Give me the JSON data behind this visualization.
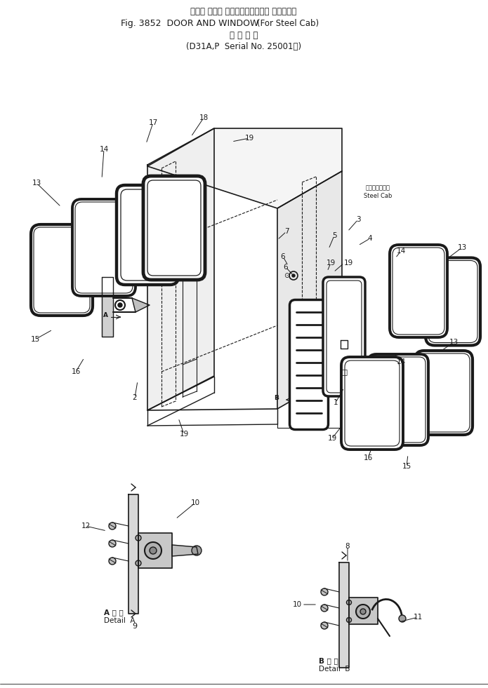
{
  "title_line1": "ドアー および ウインド（スチール キャブ用）",
  "title_line2_a": "Fig. 3852  DOOR AND WINDOW",
  "title_line2_b": "(For Steel Cab)",
  "title_line3": "通 用 号 機",
  "title_line4_a": "(D31A,P  Serial No. 25001～)",
  "steel_cab_ja": "スチールキャブ",
  "steel_cab_en": "Steel Cab",
  "detail_a_ja": "A 詳 細",
  "detail_a_en": "Detail  A",
  "detail_b_ja": "B 詳 細",
  "detail_b_en": "Detail  B",
  "bg_color": "#ffffff",
  "line_color": "#1a1a1a",
  "fig_width": 6.95,
  "fig_height": 9.81,
  "dpi": 100
}
